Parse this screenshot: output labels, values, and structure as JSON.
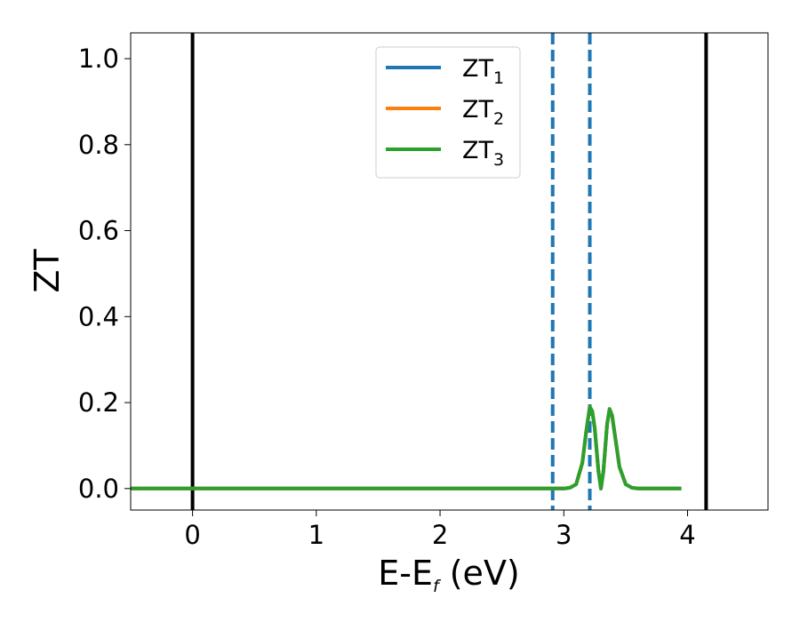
{
  "chart_data": {
    "type": "line",
    "xlabel": {
      "main": "E-E",
      "sub": "f",
      "tail": " (eV)"
    },
    "ylabel": "ZT",
    "xlim": [
      -0.5,
      4.65
    ],
    "ylim": [
      -0.05,
      1.06
    ],
    "xticks": [
      0,
      1,
      2,
      3,
      4
    ],
    "xtick_labels": [
      "0",
      "1",
      "2",
      "3",
      "4"
    ],
    "yticks": [
      0.0,
      0.2,
      0.4,
      0.6,
      0.8,
      1.0
    ],
    "ytick_labels": [
      "0.0",
      "0.2",
      "0.4",
      "0.6",
      "0.8",
      "1.0"
    ],
    "grid": false,
    "legend": {
      "placement": "top-center",
      "entries": [
        {
          "main": "ZT",
          "sub": "1"
        },
        {
          "main": "ZT",
          "sub": "2"
        },
        {
          "main": "ZT",
          "sub": "3"
        }
      ]
    },
    "series": [
      {
        "color": "#1f77b4",
        "x": [
          -0.5,
          2.9,
          3.0,
          3.05,
          3.1,
          3.15,
          3.18,
          3.21,
          3.23,
          3.25,
          3.28,
          3.3,
          3.32,
          3.35,
          3.37,
          3.39,
          3.42,
          3.45,
          3.5,
          3.55,
          3.6,
          3.7,
          3.95
        ],
        "y": [
          0.0,
          0.0,
          0.0,
          0.002,
          0.01,
          0.06,
          0.13,
          0.19,
          0.18,
          0.14,
          0.04,
          0.0,
          0.04,
          0.15,
          0.185,
          0.17,
          0.11,
          0.05,
          0.01,
          0.002,
          0.0,
          0.0,
          0.0
        ]
      },
      {
        "color": "#ff7f0e",
        "x": [
          -0.5,
          2.9,
          3.0,
          3.05,
          3.1,
          3.15,
          3.18,
          3.21,
          3.23,
          3.25,
          3.28,
          3.3,
          3.32,
          3.35,
          3.37,
          3.39,
          3.42,
          3.45,
          3.5,
          3.55,
          3.6,
          3.7,
          3.95
        ],
        "y": [
          0.0,
          0.0,
          0.0,
          0.002,
          0.01,
          0.06,
          0.13,
          0.19,
          0.18,
          0.14,
          0.04,
          0.0,
          0.04,
          0.15,
          0.185,
          0.17,
          0.11,
          0.05,
          0.01,
          0.002,
          0.0,
          0.0,
          0.0
        ]
      },
      {
        "color": "#2ca02c",
        "x": [
          -0.5,
          2.9,
          3.0,
          3.05,
          3.1,
          3.15,
          3.18,
          3.21,
          3.23,
          3.25,
          3.28,
          3.3,
          3.32,
          3.35,
          3.37,
          3.39,
          3.42,
          3.45,
          3.5,
          3.55,
          3.6,
          3.7,
          3.95
        ],
        "y": [
          0.0,
          0.0,
          0.0,
          0.002,
          0.01,
          0.06,
          0.13,
          0.19,
          0.18,
          0.14,
          0.04,
          0.0,
          0.04,
          0.15,
          0.185,
          0.17,
          0.11,
          0.05,
          0.01,
          0.002,
          0.0,
          0.0,
          0.0
        ]
      }
    ],
    "vlines": [
      {
        "x": 0.0,
        "color": "#000000",
        "style": "solid"
      },
      {
        "x": 4.15,
        "color": "#000000",
        "style": "solid"
      },
      {
        "x": 2.91,
        "color": "#1f77b4",
        "style": "dashed"
      },
      {
        "x": 3.21,
        "color": "#1f77b4",
        "style": "dashed"
      }
    ]
  }
}
